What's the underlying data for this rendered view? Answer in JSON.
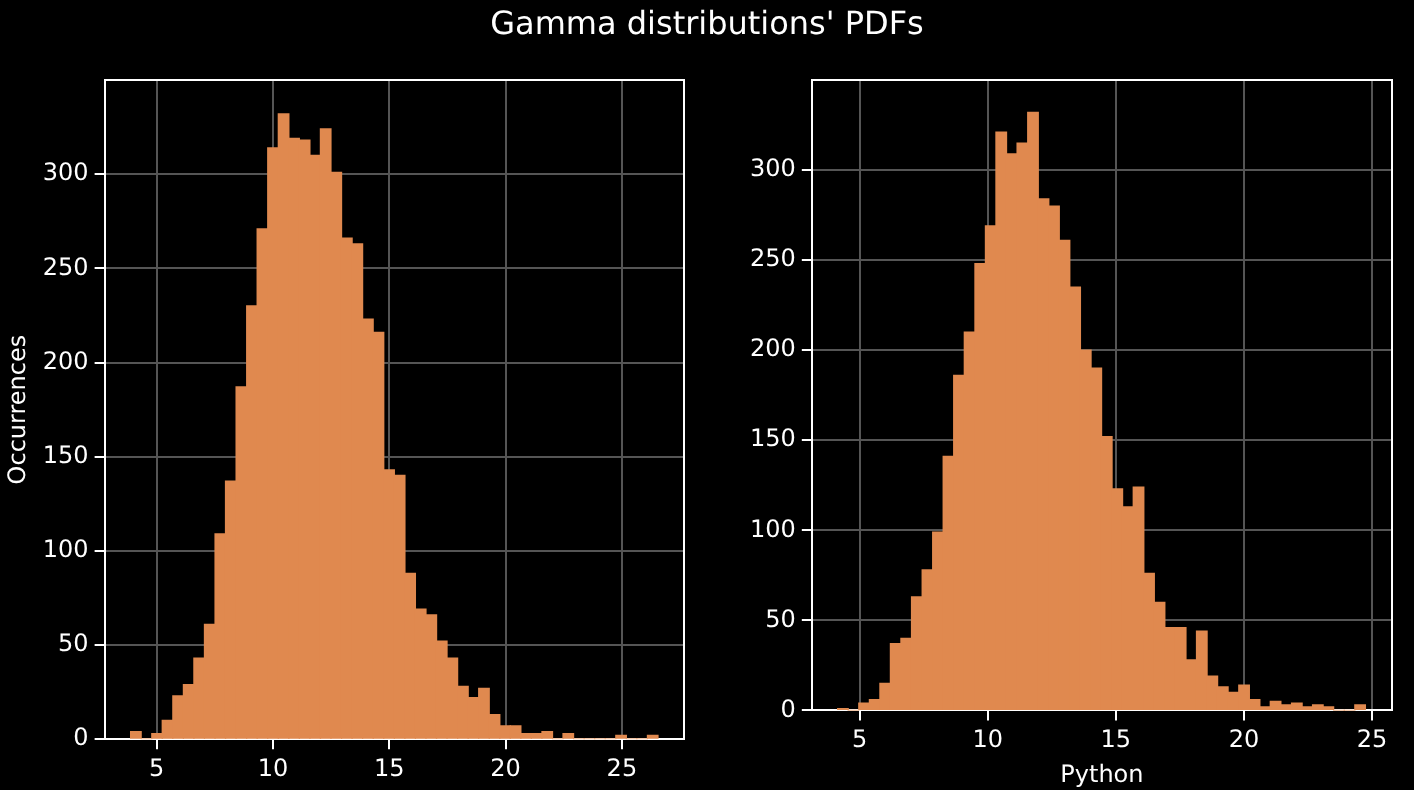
{
  "chart_data": [
    {
      "type": "histogram",
      "title": "Gamma distributions' PDFs",
      "ylabel": "Occurrences",
      "color": "#e0894f",
      "grid": true,
      "legend": false,
      "bins": [
        3.88,
        4.33,
        4.79,
        5.24,
        5.69,
        6.15,
        6.6,
        7.05,
        7.51,
        7.96,
        8.41,
        8.87,
        9.32,
        9.77,
        10.23,
        10.68,
        11.13,
        11.59,
        12.04,
        12.49,
        12.95,
        13.4,
        13.85,
        14.31,
        14.76,
        15.22,
        15.67,
        16.12,
        16.58,
        17.03,
        17.48,
        17.94,
        18.39,
        18.84,
        19.3,
        19.75,
        20.2,
        20.66,
        21.11,
        21.56,
        22.02,
        22.47,
        22.92,
        23.38,
        23.83,
        24.28,
        24.74,
        25.19,
        25.64,
        26.1,
        26.55
      ],
      "values": [
        4,
        0,
        3,
        10,
        23,
        29,
        43,
        61,
        109,
        137,
        187,
        230,
        271,
        314,
        332,
        319,
        318,
        310,
        324,
        301,
        266,
        263,
        223,
        216,
        143,
        140,
        88,
        69,
        66,
        52,
        43,
        28,
        22,
        27,
        13,
        7,
        7,
        3,
        3,
        4,
        0,
        3,
        0,
        0,
        0,
        0,
        2,
        0,
        0,
        2
      ],
      "xlim": [
        2.76,
        27.67
      ],
      "xticks": [
        5,
        10,
        15,
        20,
        25
      ],
      "ylim": [
        0,
        350
      ],
      "yticks": [
        0,
        50,
        100,
        150,
        200,
        250,
        300
      ]
    },
    {
      "type": "histogram",
      "xlabel": "Python",
      "color": "#e0894f",
      "grid": true,
      "legend": false,
      "bins": [
        4.14,
        4.55,
        4.96,
        5.38,
        5.79,
        6.2,
        6.61,
        7.02,
        7.44,
        7.85,
        8.26,
        8.67,
        9.08,
        9.5,
        9.91,
        10.32,
        10.73,
        11.14,
        11.56,
        11.97,
        12.38,
        12.79,
        13.2,
        13.62,
        14.03,
        14.44,
        14.85,
        15.26,
        15.68,
        16.09,
        16.5,
        16.91,
        17.32,
        17.74,
        18.15,
        18.56,
        18.97,
        19.38,
        19.8,
        20.21,
        20.62,
        21.03,
        21.44,
        21.86,
        22.27,
        22.68,
        23.09,
        23.5,
        23.92,
        24.33,
        24.74
      ],
      "values": [
        1,
        0,
        4,
        6,
        15,
        37,
        40,
        63,
        78,
        99,
        141,
        186,
        210,
        248,
        269,
        321,
        309,
        315,
        332,
        284,
        280,
        261,
        235,
        200,
        190,
        152,
        123,
        113,
        124,
        76,
        60,
        46,
        46,
        28,
        44,
        19,
        13,
        10,
        14,
        6,
        2,
        5,
        3,
        4,
        2,
        3,
        2,
        0,
        0,
        3
      ],
      "xlim": [
        3.13,
        25.78
      ],
      "xticks": [
        5,
        10,
        15,
        20,
        25
      ],
      "ylim": [
        0,
        350
      ],
      "yticks": [
        0,
        50,
        100,
        150,
        200,
        250,
        300
      ]
    }
  ]
}
